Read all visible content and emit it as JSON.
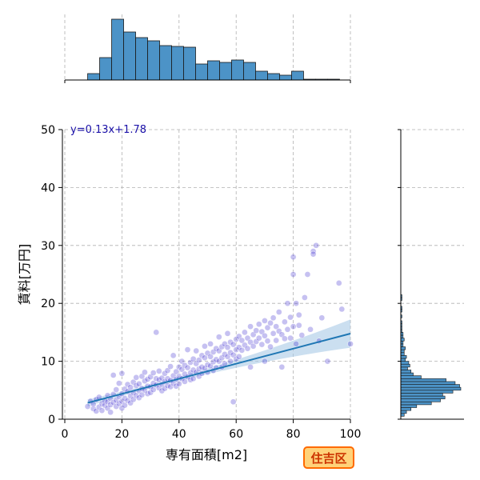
{
  "chart_data": {
    "type": "scatter",
    "title": "",
    "xlabel": "専有面積[m2]",
    "ylabel": "賃料[万円]",
    "xlim": [
      0,
      100
    ],
    "ylim": [
      0,
      50
    ],
    "x_ticks": [
      0,
      20,
      40,
      60,
      80,
      100
    ],
    "y_ticks": [
      0,
      10,
      20,
      30,
      40,
      50
    ],
    "grid": true,
    "regression": {
      "slope": 0.13,
      "intercept": 1.78,
      "x_range": [
        8,
        100
      ],
      "label": "y=0.13x+1.78"
    },
    "badge": "住吉区",
    "colors": {
      "points": "#3322cc",
      "line": "#1f77b4",
      "band": "#a9c9e6",
      "hist": "#4c93c7",
      "badge_fill": "#ffd27a",
      "badge_border": "#ff6a00"
    },
    "x_histogram": {
      "bin_width": 4.2,
      "start": 8,
      "counts": [
        8,
        28,
        76,
        60,
        53,
        49,
        43,
        42,
        41,
        20,
        24,
        22,
        25,
        22,
        11,
        8,
        6,
        11,
        1,
        1,
        1,
        1,
        1,
        0
      ]
    },
    "y_histogram": {
      "bin_width": 0.5,
      "start": 0.5,
      "counts": [
        3,
        5,
        9,
        14,
        27,
        35,
        39,
        37,
        46,
        53,
        52,
        48,
        40,
        18,
        11,
        9,
        6,
        8,
        7,
        4,
        5,
        3,
        3,
        4,
        2,
        2,
        3,
        2,
        2,
        1,
        1,
        1,
        1,
        0,
        1,
        0,
        1,
        1,
        0,
        0,
        1,
        1
      ]
    },
    "points": [
      [
        8,
        2.2
      ],
      [
        9,
        3.1
      ],
      [
        10,
        1.8
      ],
      [
        10,
        2.6
      ],
      [
        11,
        3.4
      ],
      [
        11,
        1.4
      ],
      [
        12,
        2.1
      ],
      [
        12,
        3.8
      ],
      [
        13,
        2.7
      ],
      [
        13,
        1.5
      ],
      [
        14,
        3.2
      ],
      [
        14,
        2.4
      ],
      [
        15,
        4.1
      ],
      [
        15,
        1.9
      ],
      [
        15,
        3.0
      ],
      [
        16,
        2.5
      ],
      [
        16,
        3.6
      ],
      [
        16,
        1.2
      ],
      [
        17,
        4.3
      ],
      [
        17,
        2.9
      ],
      [
        17,
        7.6
      ],
      [
        18,
        3.3
      ],
      [
        18,
        2.2
      ],
      [
        18,
        5.1
      ],
      [
        19,
        3.9
      ],
      [
        19,
        2.7
      ],
      [
        19,
        6.2
      ],
      [
        20,
        4.4
      ],
      [
        20,
        3.1
      ],
      [
        20,
        1.9
      ],
      [
        20,
        7.9
      ],
      [
        21,
        5.2
      ],
      [
        21,
        3.6
      ],
      [
        21,
        2.4
      ],
      [
        22,
        4.8
      ],
      [
        22,
        6.0
      ],
      [
        22,
        3.2
      ],
      [
        23,
        5.5
      ],
      [
        23,
        4.0
      ],
      [
        23,
        2.8
      ],
      [
        24,
        6.4
      ],
      [
        24,
        4.6
      ],
      [
        24,
        3.4
      ],
      [
        25,
        5.8
      ],
      [
        25,
        7.2
      ],
      [
        25,
        4.1
      ],
      [
        26,
        6.1
      ],
      [
        26,
        4.9
      ],
      [
        26,
        3.7
      ],
      [
        27,
        7.4
      ],
      [
        27,
        5.3
      ],
      [
        27,
        4.2
      ],
      [
        28,
        6.6
      ],
      [
        28,
        5.0
      ],
      [
        28,
        8.1
      ],
      [
        29,
        5.7
      ],
      [
        29,
        6.9
      ],
      [
        29,
        4.4
      ],
      [
        30,
        7.3
      ],
      [
        30,
        5.6
      ],
      [
        30,
        4.6
      ],
      [
        31,
        6.2
      ],
      [
        31,
        8.0
      ],
      [
        31,
        5.1
      ],
      [
        32,
        7.0
      ],
      [
        32,
        5.9
      ],
      [
        32,
        15.0
      ],
      [
        33,
        6.8
      ],
      [
        33,
        5.4
      ],
      [
        33,
        8.3
      ],
      [
        34,
        7.1
      ],
      [
        34,
        6.0
      ],
      [
        34,
        4.9
      ],
      [
        35,
        7.9
      ],
      [
        35,
        6.5
      ],
      [
        35,
        5.3
      ],
      [
        36,
        8.4
      ],
      [
        36,
        7.0
      ],
      [
        36,
        5.8
      ],
      [
        37,
        6.7
      ],
      [
        37,
        9.1
      ],
      [
        37,
        5.6
      ],
      [
        38,
        7.5
      ],
      [
        38,
        6.2
      ],
      [
        38,
        11.0
      ],
      [
        39,
        8.2
      ],
      [
        39,
        6.9
      ],
      [
        39,
        5.7
      ],
      [
        40,
        9.0
      ],
      [
        40,
        7.4
      ],
      [
        40,
        6.1
      ],
      [
        41,
        8.6
      ],
      [
        41,
        7.0
      ],
      [
        41,
        10.0
      ],
      [
        42,
        9.3
      ],
      [
        42,
        7.8
      ],
      [
        42,
        6.5
      ],
      [
        43,
        8.9
      ],
      [
        43,
        7.3
      ],
      [
        43,
        12.0
      ],
      [
        44,
        9.8
      ],
      [
        44,
        8.0
      ],
      [
        44,
        6.8
      ],
      [
        45,
        10.4
      ],
      [
        45,
        8.5
      ],
      [
        45,
        7.0
      ],
      [
        46,
        9.6
      ],
      [
        46,
        8.1
      ],
      [
        46,
        11.8
      ],
      [
        47,
        10.2
      ],
      [
        47,
        8.7
      ],
      [
        47,
        7.4
      ],
      [
        48,
        11.0
      ],
      [
        48,
        9.0
      ],
      [
        48,
        7.9
      ],
      [
        49,
        10.6
      ],
      [
        49,
        8.8
      ],
      [
        49,
        12.6
      ],
      [
        50,
        11.4
      ],
      [
        50,
        9.4
      ],
      [
        50,
        8.1
      ],
      [
        51,
        10.8
      ],
      [
        51,
        9.2
      ],
      [
        51,
        13.0
      ],
      [
        52,
        11.6
      ],
      [
        52,
        9.9
      ],
      [
        52,
        8.4
      ],
      [
        53,
        12.2
      ],
      [
        53,
        10.3
      ],
      [
        53,
        8.9
      ],
      [
        54,
        11.8
      ],
      [
        54,
        10.0
      ],
      [
        54,
        14.2
      ],
      [
        55,
        12.5
      ],
      [
        55,
        10.6
      ],
      [
        55,
        9.0
      ],
      [
        56,
        13.0
      ],
      [
        56,
        11.2
      ],
      [
        56,
        9.6
      ],
      [
        57,
        12.4
      ],
      [
        57,
        10.8
      ],
      [
        57,
        14.8
      ],
      [
        58,
        13.3
      ],
      [
        58,
        11.5
      ],
      [
        58,
        10.0
      ],
      [
        59,
        12.9
      ],
      [
        59,
        11.1
      ],
      [
        59,
        3.0
      ],
      [
        60,
        13.8
      ],
      [
        60,
        12.0
      ],
      [
        60,
        10.4
      ],
      [
        61,
        14.3
      ],
      [
        61,
        12.4
      ],
      [
        61,
        10.8
      ],
      [
        62,
        13.6
      ],
      [
        62,
        11.9
      ],
      [
        63,
        15.0
      ],
      [
        63,
        12.8
      ],
      [
        64,
        14.0
      ],
      [
        64,
        12.2
      ],
      [
        65,
        16.0
      ],
      [
        65,
        13.3
      ],
      [
        65,
        9.0
      ],
      [
        66,
        14.6
      ],
      [
        66,
        12.6
      ],
      [
        67,
        15.3
      ],
      [
        67,
        13.4
      ],
      [
        68,
        16.4
      ],
      [
        68,
        14.0
      ],
      [
        69,
        15.1
      ],
      [
        69,
        12.9
      ],
      [
        70,
        17.0
      ],
      [
        70,
        14.4
      ],
      [
        70,
        10.0
      ],
      [
        71,
        15.8
      ],
      [
        71,
        13.5
      ],
      [
        72,
        16.6
      ],
      [
        72,
        12.5
      ],
      [
        73,
        17.5
      ],
      [
        73,
        14.8
      ],
      [
        74,
        16.0
      ],
      [
        74,
        13.6
      ],
      [
        75,
        15.2
      ],
      [
        75,
        18.5
      ],
      [
        76,
        14.6
      ],
      [
        76,
        9.0
      ],
      [
        77,
        16.8
      ],
      [
        77,
        13.9
      ],
      [
        78,
        20.0
      ],
      [
        78,
        15.5
      ],
      [
        79,
        14.0
      ],
      [
        79,
        17.6
      ],
      [
        80,
        28.0
      ],
      [
        80,
        25.0
      ],
      [
        80,
        16.0
      ],
      [
        81,
        20.0
      ],
      [
        81,
        13.0
      ],
      [
        82,
        18.0
      ],
      [
        82,
        16.2
      ],
      [
        83,
        14.5
      ],
      [
        84,
        21.0
      ],
      [
        85,
        25.0
      ],
      [
        86,
        15.5
      ],
      [
        87,
        29.0
      ],
      [
        87,
        28.5
      ],
      [
        88,
        30.0
      ],
      [
        89,
        13.5
      ],
      [
        90,
        17.5
      ],
      [
        92,
        10.0
      ],
      [
        96,
        23.5
      ],
      [
        97,
        19.0
      ],
      [
        100,
        13.0
      ]
    ]
  }
}
